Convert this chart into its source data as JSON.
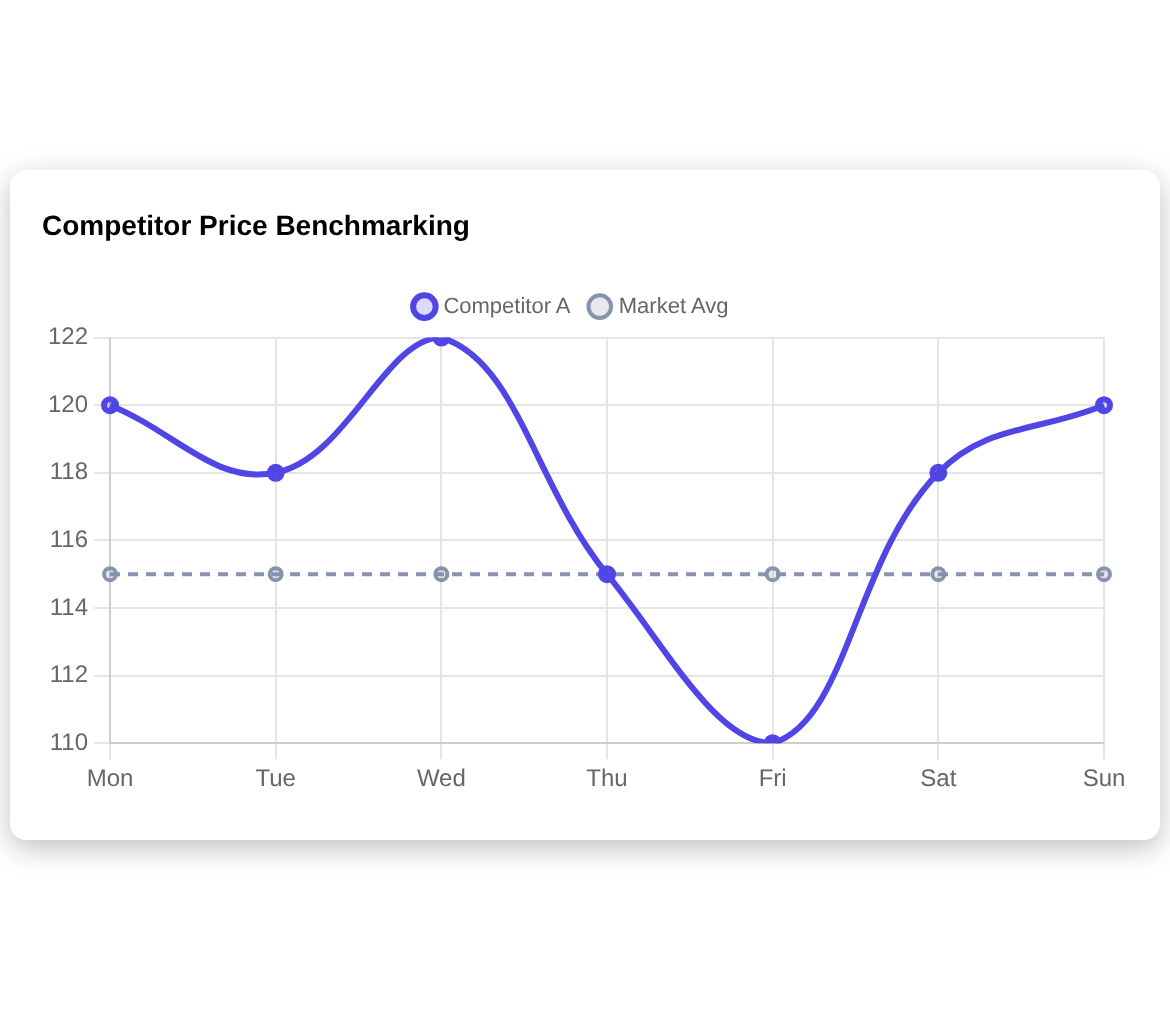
{
  "chart_data": {
    "type": "line",
    "title": "Competitor Price Benchmarking",
    "categories": [
      "Mon",
      "Tue",
      "Wed",
      "Thu",
      "Fri",
      "Sat",
      "Sun"
    ],
    "series": [
      {
        "name": "Competitor A",
        "color": "#4f46e5",
        "values": [
          120,
          118,
          122,
          115,
          110,
          118,
          120
        ],
        "line_style": "solid"
      },
      {
        "name": "Market Avg",
        "color": "#8793ad",
        "values": [
          115,
          115,
          115,
          115,
          115,
          115,
          115
        ],
        "line_style": "dashed"
      }
    ],
    "ylim": [
      110,
      122
    ],
    "yticks": [
      110,
      112,
      114,
      116,
      118,
      120,
      122
    ],
    "grid": true,
    "legend": "top",
    "marker": "circle"
  }
}
